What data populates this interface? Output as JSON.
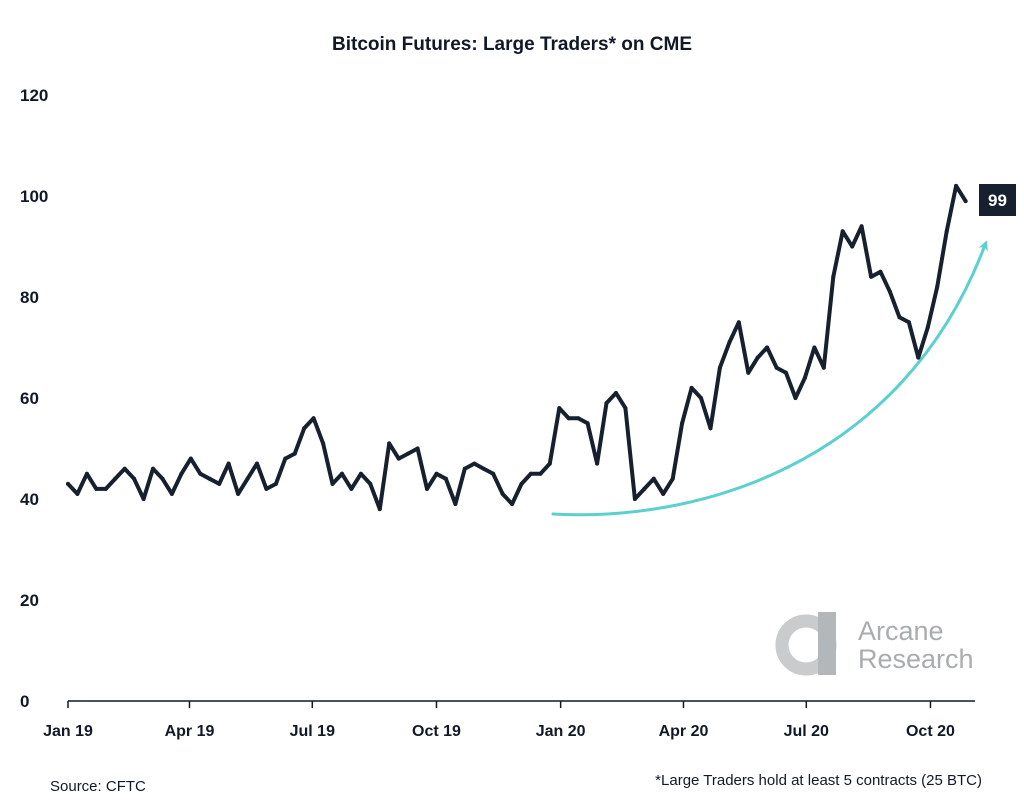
{
  "chart_data": {
    "type": "line",
    "title": "Bitcoin Futures: Large Traders* on CME",
    "xlabel": "",
    "ylabel": "",
    "ylim": [
      0,
      120
    ],
    "y_ticks": [
      0,
      20,
      40,
      60,
      80,
      100,
      120
    ],
    "x_ticks": [
      "Jan 19",
      "Apr 19",
      "Jul 19",
      "Oct 19",
      "Jan 20",
      "Apr 20",
      "Jul 20",
      "Oct 20"
    ],
    "x_range": [
      "2019-01-01",
      "2020-11-03"
    ],
    "grid": false,
    "series": [
      {
        "color": "#17202e",
        "points": [
          [
            "2019-01-01",
            43
          ],
          [
            "2019-01-08",
            41
          ],
          [
            "2019-01-15",
            45
          ],
          [
            "2019-01-22",
            42
          ],
          [
            "2019-01-29",
            42
          ],
          [
            "2019-02-05",
            44
          ],
          [
            "2019-02-12",
            46
          ],
          [
            "2019-02-19",
            44
          ],
          [
            "2019-02-26",
            40
          ],
          [
            "2019-03-05",
            46
          ],
          [
            "2019-03-12",
            44
          ],
          [
            "2019-03-19",
            41
          ],
          [
            "2019-03-26",
            45
          ],
          [
            "2019-04-02",
            48
          ],
          [
            "2019-04-09",
            45
          ],
          [
            "2019-04-16",
            44
          ],
          [
            "2019-04-23",
            43
          ],
          [
            "2019-04-30",
            47
          ],
          [
            "2019-05-07",
            41
          ],
          [
            "2019-05-14",
            44
          ],
          [
            "2019-05-21",
            47
          ],
          [
            "2019-05-28",
            42
          ],
          [
            "2019-06-04",
            43
          ],
          [
            "2019-06-11",
            48
          ],
          [
            "2019-06-18",
            49
          ],
          [
            "2019-06-25",
            54
          ],
          [
            "2019-07-02",
            56
          ],
          [
            "2019-07-09",
            51
          ],
          [
            "2019-07-16",
            43
          ],
          [
            "2019-07-23",
            45
          ],
          [
            "2019-07-30",
            42
          ],
          [
            "2019-08-06",
            45
          ],
          [
            "2019-08-13",
            43
          ],
          [
            "2019-08-20",
            38
          ],
          [
            "2019-08-27",
            51
          ],
          [
            "2019-09-03",
            48
          ],
          [
            "2019-09-10",
            49
          ],
          [
            "2019-09-17",
            50
          ],
          [
            "2019-09-24",
            42
          ],
          [
            "2019-10-01",
            45
          ],
          [
            "2019-10-08",
            44
          ],
          [
            "2019-10-15",
            39
          ],
          [
            "2019-10-22",
            46
          ],
          [
            "2019-10-29",
            47
          ],
          [
            "2019-11-05",
            46
          ],
          [
            "2019-11-12",
            45
          ],
          [
            "2019-11-19",
            41
          ],
          [
            "2019-11-26",
            39
          ],
          [
            "2019-12-03",
            43
          ],
          [
            "2019-12-10",
            45
          ],
          [
            "2019-12-17",
            45
          ],
          [
            "2019-12-24",
            47
          ],
          [
            "2019-12-31",
            58
          ],
          [
            "2020-01-07",
            56
          ],
          [
            "2020-01-14",
            56
          ],
          [
            "2020-01-21",
            55
          ],
          [
            "2020-01-28",
            47
          ],
          [
            "2020-02-04",
            59
          ],
          [
            "2020-02-11",
            61
          ],
          [
            "2020-02-18",
            58
          ],
          [
            "2020-02-25",
            40
          ],
          [
            "2020-03-03",
            42
          ],
          [
            "2020-03-10",
            44
          ],
          [
            "2020-03-17",
            41
          ],
          [
            "2020-03-24",
            44
          ],
          [
            "2020-03-31",
            55
          ],
          [
            "2020-04-07",
            62
          ],
          [
            "2020-04-14",
            60
          ],
          [
            "2020-04-21",
            54
          ],
          [
            "2020-04-28",
            66
          ],
          [
            "2020-05-05",
            71
          ],
          [
            "2020-05-12",
            75
          ],
          [
            "2020-05-19",
            65
          ],
          [
            "2020-05-26",
            68
          ],
          [
            "2020-06-02",
            70
          ],
          [
            "2020-06-09",
            66
          ],
          [
            "2020-06-16",
            65
          ],
          [
            "2020-06-23",
            60
          ],
          [
            "2020-06-30",
            64
          ],
          [
            "2020-07-07",
            70
          ],
          [
            "2020-07-14",
            66
          ],
          [
            "2020-07-21",
            84
          ],
          [
            "2020-07-28",
            93
          ],
          [
            "2020-08-04",
            90
          ],
          [
            "2020-08-11",
            94
          ],
          [
            "2020-08-18",
            84
          ],
          [
            "2020-08-25",
            85
          ],
          [
            "2020-09-01",
            81
          ],
          [
            "2020-09-08",
            76
          ],
          [
            "2020-09-15",
            75
          ],
          [
            "2020-09-22",
            68
          ],
          [
            "2020-09-29",
            74
          ],
          [
            "2020-10-06",
            82
          ],
          [
            "2020-10-13",
            93
          ],
          [
            "2020-10-20",
            102
          ],
          [
            "2020-10-27",
            99
          ]
        ]
      }
    ],
    "trend_arrow": {
      "color": "#5ccfcf"
    },
    "last_value_label": "99",
    "annotations": {
      "source": "Source: CFTC",
      "footnote": "*Large Traders hold at least 5 contracts (25 BTC)"
    }
  },
  "watermark": {
    "line1": "Arcane",
    "line2": "Research"
  }
}
